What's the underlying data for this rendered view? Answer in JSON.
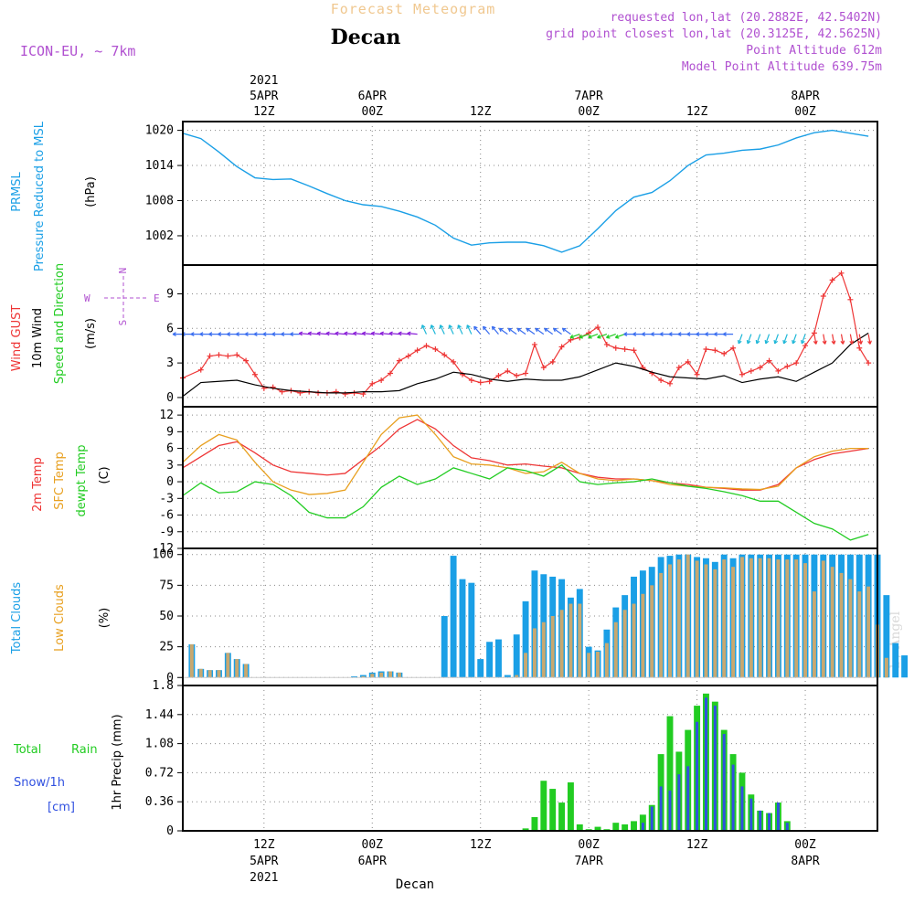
{
  "header": {
    "subtitle": "Forecast Meteogram",
    "location": "Decan",
    "model": "ICON-EU, ~ 7km",
    "requested": "requested lon,lat (20.2882E, 42.5402N)",
    "gridpoint": "grid point closest lon,lat (20.3125E, 42.5625N)",
    "point_alt": "Point Altitude 612m",
    "model_alt": "Model Point Altitude 639.75m",
    "credit": "by Angel",
    "footer": "Decan"
  },
  "colors": {
    "pressure": "#1a9fe6",
    "gust": "#ee3535",
    "wind": "#000000",
    "temp2m": "#ee3535",
    "sfc": "#e8a020",
    "dewpt": "#22cc22",
    "total_cloud": "#1a9fe6",
    "low_cloud": "#c8a870",
    "rain": "#22cc22",
    "snow": "#3050e0",
    "label_purple": "#b050d0"
  },
  "time_axis": {
    "top_year": "2021",
    "top_labels": [
      {
        "hour": 9,
        "line1": "5APR",
        "line2": "12Z"
      },
      {
        "hour": 21,
        "line1": "6APR",
        "line2": "00Z"
      },
      {
        "hour": 33,
        "line1": "",
        "line2": "12Z"
      },
      {
        "hour": 45,
        "line1": "7APR",
        "line2": "00Z"
      },
      {
        "hour": 57,
        "line1": "",
        "line2": "12Z"
      },
      {
        "hour": 69,
        "line1": "8APR",
        "line2": "00Z"
      }
    ],
    "bottom_labels": [
      {
        "hour": 9,
        "line1": "12Z",
        "line2": "5APR",
        "line3": "2021"
      },
      {
        "hour": 21,
        "line1": "00Z",
        "line2": "6APR",
        "line3": ""
      },
      {
        "hour": 33,
        "line1": "12Z",
        "line2": "",
        "line3": ""
      },
      {
        "hour": 45,
        "line1": "00Z",
        "line2": "7APR",
        "line3": ""
      },
      {
        "hour": 57,
        "line1": "12Z",
        "line2": "",
        "line3": ""
      },
      {
        "hour": 69,
        "line1": "00Z",
        "line2": "8APR",
        "line3": ""
      }
    ]
  },
  "panel_labels": {
    "pressure": [
      "PRMSL",
      "Pressure Reduced to MSL",
      "(hPa)"
    ],
    "wind": [
      "Wind GUST",
      "10m Wind",
      "Speed and Direction",
      "(m/s)"
    ],
    "compass": {
      "n": "N",
      "s": "S",
      "w": "W",
      "e": "E"
    },
    "temp": [
      "2m Temp",
      "SFC Temp",
      "dewpt Temp",
      "(C)"
    ],
    "cloud": [
      "Total Clouds",
      "Low Clouds",
      "(%)"
    ],
    "precip": [
      "Total",
      "Rain",
      "Snow/1h",
      "[cm]",
      "1hr Precip (mm)"
    ]
  },
  "chart_data": [
    {
      "type": "line",
      "title": "PRMSL Pressure Reduced to MSL",
      "ylabel": "(hPa)",
      "x_unit": "hours from 5APR 03Z",
      "ylim": [
        997,
        1021.5
      ],
      "yticks": [
        1002,
        1008,
        1014,
        1020
      ],
      "series": [
        {
          "name": "PRMSL",
          "x": [
            0,
            2,
            4,
            6,
            8,
            10,
            12,
            14,
            16,
            18,
            20,
            22,
            24,
            26,
            28,
            30,
            32,
            34,
            36,
            38,
            40,
            42,
            44,
            46,
            48,
            50,
            52,
            54,
            56,
            58,
            60,
            62,
            64,
            66,
            68,
            70,
            72,
            74,
            76
          ],
          "values": [
            1019.5,
            1018.6,
            1016.3,
            1013.8,
            1011.9,
            1011.6,
            1011.7,
            1010.5,
            1009.2,
            1008.0,
            1007.3,
            1007.0,
            1006.2,
            1005.2,
            1003.8,
            1001.6,
            1000.4,
            1000.8,
            1000.9,
            1000.9,
            1000.3,
            999.2,
            1000.3,
            1003.2,
            1006.3,
            1008.6,
            1009.4,
            1011.4,
            1014.0,
            1015.8,
            1016.1,
            1016.6,
            1016.8,
            1017.5,
            1018.7,
            1019.6,
            1020.0,
            1019.5,
            1019.0
          ]
        }
      ]
    },
    {
      "type": "line",
      "title": "Wind GUST / 10m Wind Speed and Direction",
      "ylabel": "(m/s)",
      "ylim": [
        -0.8,
        11.5
      ],
      "yticks": [
        0,
        3,
        6,
        9
      ],
      "series": [
        {
          "name": "Wind GUST",
          "x": [
            0,
            2,
            3,
            4,
            5,
            6,
            7,
            8,
            9,
            10,
            11,
            12,
            13,
            14,
            15,
            16,
            17,
            18,
            19,
            20,
            21,
            22,
            23,
            24,
            25,
            26,
            27,
            28,
            29,
            30,
            31,
            32,
            33,
            34,
            35,
            36,
            37,
            38,
            39,
            40,
            41,
            42,
            43,
            44,
            45,
            46,
            47,
            48,
            49,
            50,
            51,
            52,
            53,
            54,
            55,
            56,
            57,
            58,
            59,
            60,
            61,
            62,
            63,
            64,
            65,
            66,
            67,
            68,
            69,
            70,
            71,
            72,
            73,
            74,
            75,
            76
          ],
          "values": [
            1.7,
            2.4,
            3.6,
            3.7,
            3.6,
            3.7,
            3.2,
            2.0,
            0.8,
            0.9,
            0.5,
            0.6,
            0.4,
            0.5,
            0.4,
            0.4,
            0.5,
            0.3,
            0.4,
            0.3,
            1.2,
            1.5,
            2.1,
            3.2,
            3.6,
            4.1,
            4.5,
            4.2,
            3.7,
            3.1,
            2.0,
            1.5,
            1.3,
            1.4,
            1.9,
            2.3,
            1.9,
            2.1,
            4.6,
            2.6,
            3.1,
            4.4,
            5.0,
            5.2,
            5.6,
            6.1,
            4.6,
            4.3,
            4.2,
            4.1,
            2.6,
            2.1,
            1.5,
            1.2,
            2.6,
            3.1,
            2.0,
            4.2,
            4.1,
            3.8,
            4.3,
            2.0,
            2.3,
            2.6,
            3.2,
            2.3,
            2.7,
            3.0,
            4.5,
            5.6,
            8.8,
            10.2,
            10.8,
            8.5,
            4.3,
            3.0
          ]
        },
        {
          "name": "10m Wind",
          "x": [
            0,
            2,
            4,
            6,
            8,
            10,
            12,
            14,
            16,
            18,
            20,
            22,
            24,
            26,
            28,
            30,
            32,
            34,
            36,
            38,
            40,
            42,
            44,
            46,
            48,
            50,
            52,
            54,
            56,
            58,
            60,
            62,
            64,
            66,
            68,
            70,
            72,
            74,
            76
          ],
          "values": [
            0.1,
            1.3,
            1.4,
            1.5,
            1.1,
            0.8,
            0.6,
            0.5,
            0.4,
            0.4,
            0.5,
            0.5,
            0.6,
            1.2,
            1.6,
            2.2,
            2.0,
            1.6,
            1.4,
            1.6,
            1.5,
            1.5,
            1.8,
            2.4,
            3.0,
            2.7,
            2.2,
            1.8,
            1.7,
            1.6,
            1.9,
            1.3,
            1.6,
            1.8,
            1.4,
            2.2,
            3.0,
            4.6,
            5.6
          ]
        }
      ],
      "wind_direction_note": "Direction arrows plotted along y = 5.5 m/s, colored by speed"
    },
    {
      "type": "line",
      "title": "2m Temp / SFC Temp / dewpt Temp",
      "ylabel": "(C)",
      "ylim": [
        -12,
        13.5
      ],
      "yticks": [
        -12,
        -9,
        -6,
        -3,
        0,
        3,
        6,
        9,
        12
      ],
      "series": [
        {
          "name": "2m Temp",
          "x": [
            0,
            2,
            4,
            6,
            8,
            10,
            12,
            14,
            16,
            18,
            20,
            22,
            24,
            26,
            28,
            30,
            32,
            34,
            36,
            38,
            40,
            42,
            44,
            46,
            48,
            50,
            52,
            54,
            56,
            58,
            60,
            62,
            64,
            66,
            68,
            70,
            72,
            74,
            76
          ],
          "values": [
            2.5,
            4.5,
            6.5,
            7.2,
            5.2,
            3.0,
            1.8,
            1.5,
            1.2,
            1.5,
            4.0,
            6.5,
            9.5,
            11.2,
            9.5,
            6.5,
            4.3,
            3.8,
            3.0,
            3.2,
            2.8,
            2.5,
            1.5,
            0.8,
            0.5,
            0.5,
            0.2,
            -0.2,
            -0.5,
            -1.0,
            -1.2,
            -1.5,
            -1.5,
            -0.5,
            2.5,
            4.0,
            5.0,
            5.5,
            6.0
          ]
        },
        {
          "name": "SFC Temp",
          "x": [
            0,
            2,
            4,
            6,
            8,
            10,
            12,
            14,
            16,
            18,
            20,
            22,
            24,
            26,
            28,
            30,
            32,
            34,
            36,
            38,
            40,
            42,
            44,
            46,
            48,
            50,
            52,
            54,
            56,
            58,
            60,
            62,
            64,
            66,
            68,
            70,
            72,
            74,
            76
          ],
          "values": [
            3.5,
            6.5,
            8.5,
            7.5,
            3.5,
            0.0,
            -1.5,
            -2.3,
            -2.1,
            -1.5,
            3.5,
            8.5,
            11.5,
            12.0,
            8.5,
            4.5,
            3.2,
            3.0,
            2.5,
            1.5,
            1.8,
            3.5,
            1.5,
            0.5,
            0.2,
            0.5,
            0.2,
            -0.5,
            -0.8,
            -1.0,
            -1.1,
            -1.3,
            -1.4,
            -0.8,
            2.5,
            4.5,
            5.5,
            6.0,
            6.0
          ]
        },
        {
          "name": "dewpt Temp",
          "x": [
            0,
            2,
            4,
            6,
            8,
            10,
            12,
            14,
            16,
            18,
            20,
            22,
            24,
            26,
            28,
            30,
            32,
            34,
            36,
            38,
            40,
            42,
            44,
            46,
            48,
            50,
            52,
            54,
            56,
            58,
            60,
            62,
            64,
            66,
            68,
            70,
            72,
            74,
            76
          ],
          "values": [
            -2.5,
            -0.2,
            -2.0,
            -1.8,
            0.0,
            -0.5,
            -2.5,
            -5.5,
            -6.5,
            -6.5,
            -4.5,
            -1.0,
            1.0,
            -0.5,
            0.5,
            2.5,
            1.5,
            0.5,
            2.5,
            2.0,
            1.0,
            3.0,
            0.0,
            -0.5,
            -0.2,
            0.0,
            0.5,
            -0.2,
            -0.8,
            -1.2,
            -1.8,
            -2.5,
            -3.5,
            -3.5,
            -5.5,
            -7.5,
            -8.5,
            -10.5,
            -9.5
          ]
        }
      ]
    },
    {
      "type": "bar",
      "title": "Total Clouds / Low Clouds",
      "ylabel": "(%)",
      "ylim": [
        0,
        100
      ],
      "yticks": [
        0,
        25,
        50,
        75,
        100
      ],
      "x_start_hour": 0,
      "series": [
        {
          "name": "Total Clouds",
          "values": [
            0,
            27,
            7,
            6,
            6,
            20,
            15,
            11,
            0,
            0,
            0,
            0,
            0,
            0,
            0,
            0,
            0,
            0,
            0,
            1,
            2,
            4,
            5,
            5,
            4,
            0,
            0,
            0,
            0,
            50,
            99,
            80,
            77,
            15,
            29,
            31,
            2,
            35,
            62,
            87,
            84,
            82,
            80,
            65,
            72,
            25,
            22,
            39,
            57,
            67,
            82,
            87,
            90,
            98,
            99,
            100,
            100,
            98,
            97,
            94,
            100,
            97,
            100,
            100,
            100,
            100,
            100,
            100,
            100,
            100,
            100,
            100,
            100,
            100,
            100,
            100,
            100,
            100,
            67,
            28,
            18
          ]
        },
        {
          "name": "Low Clouds",
          "values": [
            0,
            27,
            7,
            6,
            6,
            20,
            15,
            11,
            0,
            0,
            0,
            0,
            0,
            0,
            0,
            0,
            0,
            0,
            0,
            0,
            1,
            3,
            4,
            5,
            4,
            0,
            0,
            0,
            0,
            0,
            0,
            0,
            0,
            0,
            0,
            0,
            0,
            2,
            20,
            40,
            45,
            50,
            55,
            60,
            60,
            20,
            21,
            28,
            45,
            55,
            60,
            68,
            75,
            85,
            92,
            96,
            100,
            95,
            92,
            88,
            96,
            90,
            98,
            97,
            97,
            97,
            96,
            96,
            96,
            93,
            70,
            95,
            90,
            85,
            80,
            70,
            74,
            43,
            16,
            0,
            0
          ]
        }
      ]
    },
    {
      "type": "bar",
      "title": "1hr Precip (mm)",
      "ylabel": "1hr Precip (mm)",
      "ylim": [
        0,
        1.8
      ],
      "yticks": [
        0,
        0.36,
        0.72,
        1.08,
        1.44,
        1.8
      ],
      "x_start_hour": 0,
      "series": [
        {
          "name": "Total Rain",
          "values": [
            0,
            0,
            0,
            0,
            0,
            0,
            0,
            0,
            0,
            0,
            0,
            0,
            0,
            0,
            0,
            0,
            0,
            0,
            0,
            0,
            0,
            0,
            0,
            0,
            0,
            0,
            0,
            0,
            0,
            0,
            0,
            0,
            0,
            0,
            0,
            0,
            0,
            0,
            0.03,
            0.17,
            0.62,
            0.52,
            0.35,
            0.6,
            0.08,
            0.02,
            0.05,
            0.02,
            0.1,
            0.08,
            0.12,
            0.2,
            0.32,
            0.95,
            1.42,
            0.98,
            1.25,
            1.55,
            1.7,
            1.6,
            1.25,
            0.95,
            0.72,
            0.45,
            0.25,
            0.22,
            0.35,
            0.12,
            0,
            0,
            0,
            0,
            0,
            0,
            0,
            0,
            0
          ]
        },
        {
          "name": "Snow/1h",
          "values": [
            0,
            0,
            0,
            0,
            0,
            0,
            0,
            0,
            0,
            0,
            0,
            0,
            0,
            0,
            0,
            0,
            0,
            0,
            0,
            0,
            0,
            0,
            0,
            0,
            0,
            0,
            0,
            0,
            0,
            0,
            0,
            0,
            0,
            0,
            0,
            0,
            0,
            0,
            0,
            0,
            0,
            0,
            0,
            0,
            0,
            0,
            0,
            0,
            0,
            0,
            0,
            0.1,
            0.3,
            0.55,
            0.5,
            0.7,
            0.8,
            1.35,
            1.65,
            1.55,
            1.2,
            0.82,
            0.55,
            0.4,
            0.25,
            0.22,
            0.35,
            0.1,
            0,
            0,
            0,
            0,
            0,
            0,
            0,
            0,
            0
          ]
        }
      ]
    }
  ]
}
